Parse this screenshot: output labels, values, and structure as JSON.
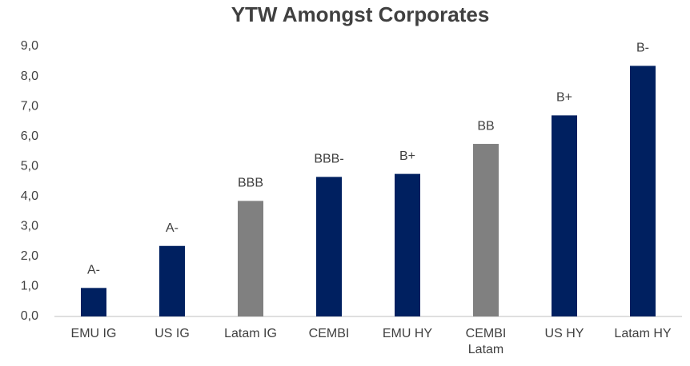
{
  "chart_data": {
    "type": "bar",
    "title": "YTW Amongst Corporates",
    "categories": [
      "EMU IG",
      "US IG",
      "Latam IG",
      "CEMBI",
      "EMU HY",
      "CEMBI Latam",
      "US HY",
      "Latam HY"
    ],
    "values": [
      0.95,
      2.35,
      3.85,
      4.65,
      4.75,
      5.75,
      6.7,
      8.35
    ],
    "colors": [
      "#002060",
      "#002060",
      "#808080",
      "#002060",
      "#002060",
      "#808080",
      "#002060",
      "#002060"
    ],
    "annotations": [
      "A-",
      "A-",
      "BBB",
      "BBB-",
      "B+",
      "BB",
      "B+",
      "B-"
    ],
    "ylim": [
      0,
      9
    ],
    "yticks": [
      {
        "value": 0,
        "label": "0,0"
      },
      {
        "value": 1,
        "label": "1,0"
      },
      {
        "value": 2,
        "label": "2,0"
      },
      {
        "value": 3,
        "label": "3,0"
      },
      {
        "value": 4,
        "label": "4,0"
      },
      {
        "value": 5,
        "label": "5,0"
      },
      {
        "value": 6,
        "label": "6,0"
      },
      {
        "value": 7,
        "label": "7,0"
      },
      {
        "value": 8,
        "label": "8,0"
      },
      {
        "value": 9,
        "label": "9,0"
      }
    ],
    "grid": false
  }
}
